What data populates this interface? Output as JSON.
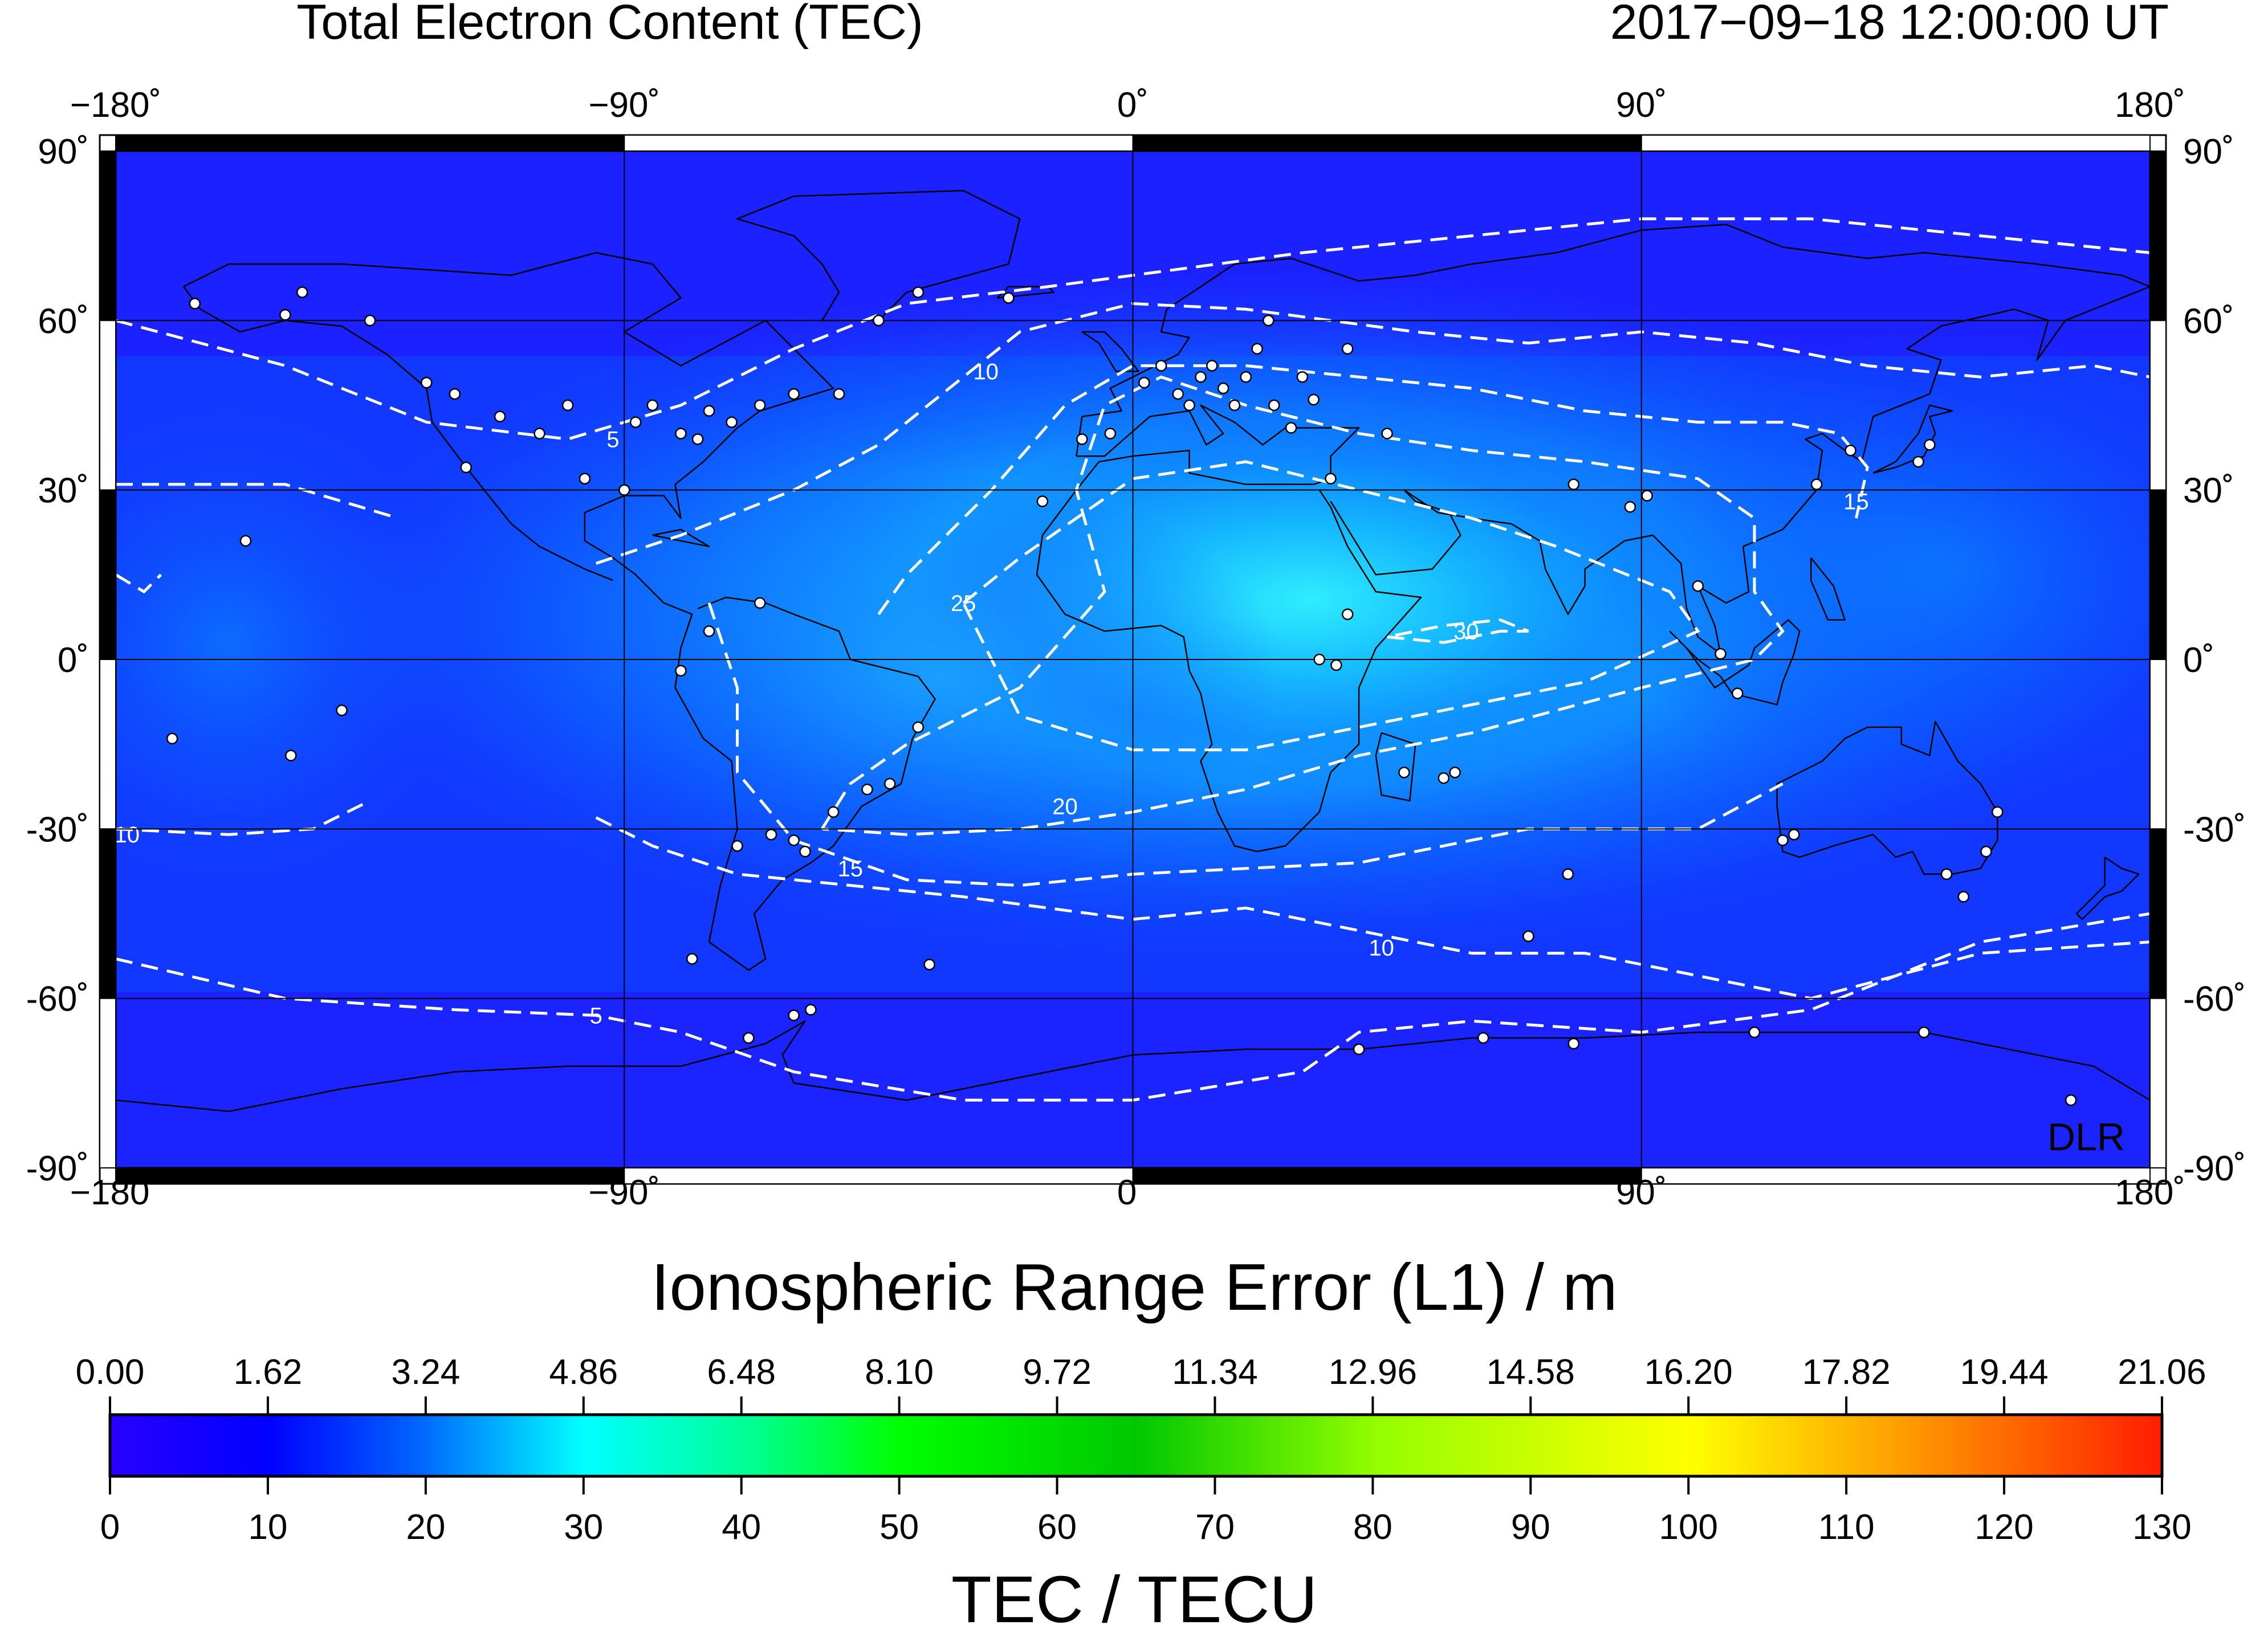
{
  "header": {
    "title": "Total Electron Content (TEC)",
    "timestamp": "2017−09−18  12:00:00 UT"
  },
  "map": {
    "lon_ticks": [
      {
        "value": -180,
        "label": "−180˚"
      },
      {
        "value": -90,
        "label": "−90˚"
      },
      {
        "value": 0,
        "label": "0˚"
      },
      {
        "value": 90,
        "label": "90˚"
      },
      {
        "value": 180,
        "label": "180˚"
      }
    ],
    "lat_ticks": [
      {
        "value": 90,
        "label": "90˚"
      },
      {
        "value": 60,
        "label": "60˚"
      },
      {
        "value": 30,
        "label": "30˚"
      },
      {
        "value": 0,
        "label": "0˚"
      },
      {
        "value": -30,
        "label": "-30˚"
      },
      {
        "value": -60,
        "label": "-60˚"
      },
      {
        "value": -90,
        "label": "-90˚"
      }
    ],
    "lon_range": [
      -180,
      180
    ],
    "lat_range": [
      -90,
      90
    ],
    "watermark": "DLR",
    "contour_labels": [
      "5",
      "10",
      "15",
      "20",
      "25",
      "30"
    ]
  },
  "chart_data": {
    "type": "heatmap",
    "title": "Total Electron Content (TEC)",
    "xlim": [
      -180,
      180
    ],
    "ylim": [
      -90,
      90
    ],
    "contour_levels": [
      5,
      10,
      15,
      20,
      25,
      30
    ],
    "max_region": {
      "lon": 25,
      "lat": 10,
      "value": 32
    },
    "stations_approx": [
      [
        -166,
        63
      ],
      [
        -150,
        61
      ],
      [
        -147,
        65
      ],
      [
        -135,
        60
      ],
      [
        -125,
        49
      ],
      [
        -120,
        47
      ],
      [
        -118,
        34
      ],
      [
        -112,
        43
      ],
      [
        -105,
        40
      ],
      [
        -100,
        45
      ],
      [
        -97,
        32
      ],
      [
        -90,
        30
      ],
      [
        -88,
        42
      ],
      [
        -85,
        45
      ],
      [
        -80,
        40
      ],
      [
        -77,
        39
      ],
      [
        -75,
        44
      ],
      [
        -71,
        42
      ],
      [
        -66,
        45
      ],
      [
        -60,
        47
      ],
      [
        -52,
        47
      ],
      [
        -45,
        60
      ],
      [
        -38,
        65
      ],
      [
        -22,
        64
      ],
      [
        -16,
        28
      ],
      [
        -9,
        39
      ],
      [
        -4,
        40
      ],
      [
        2,
        49
      ],
      [
        5,
        52
      ],
      [
        8,
        47
      ],
      [
        10,
        45
      ],
      [
        12,
        50
      ],
      [
        14,
        52
      ],
      [
        16,
        48
      ],
      [
        18,
        45
      ],
      [
        20,
        50
      ],
      [
        22,
        55
      ],
      [
        24,
        60
      ],
      [
        25,
        45
      ],
      [
        28,
        41
      ],
      [
        30,
        50
      ],
      [
        32,
        46
      ],
      [
        35,
        32
      ],
      [
        38,
        55
      ],
      [
        45,
        40
      ],
      [
        36,
        -1
      ],
      [
        38,
        8
      ],
      [
        33,
        0
      ],
      [
        48,
        -20
      ],
      [
        55,
        -21
      ],
      [
        57,
        -20
      ],
      [
        70,
        -49
      ],
      [
        77,
        -38
      ],
      [
        78,
        31
      ],
      [
        88,
        27
      ],
      [
        91,
        29
      ],
      [
        100,
        13
      ],
      [
        104,
        1
      ],
      [
        107,
        -6
      ],
      [
        115,
        -32
      ],
      [
        117,
        -31
      ],
      [
        121,
        31
      ],
      [
        127,
        37
      ],
      [
        139,
        35
      ],
      [
        141,
        38
      ],
      [
        144,
        -38
      ],
      [
        147,
        -42
      ],
      [
        151,
        -34
      ],
      [
        153,
        -27
      ],
      [
        -58,
        -34
      ],
      [
        -60,
        -32
      ],
      [
        -64,
        -31
      ],
      [
        -70,
        -33
      ],
      [
        -47,
        -23
      ],
      [
        -43,
        -22
      ],
      [
        -53,
        -27
      ],
      [
        -38,
        -12
      ],
      [
        -66,
        10
      ],
      [
        -75,
        5
      ],
      [
        -80,
        -2
      ],
      [
        -157,
        21
      ],
      [
        -149,
        -17
      ],
      [
        -140,
        -9
      ],
      [
        -170,
        -14
      ],
      [
        -60,
        -63
      ],
      [
        -57,
        -62
      ],
      [
        -68,
        -67
      ],
      [
        -78,
        -53
      ],
      [
        -36,
        -54
      ],
      [
        40,
        -69
      ],
      [
        62,
        -67
      ],
      [
        78,
        -68
      ],
      [
        110,
        -66
      ],
      [
        140,
        -66
      ],
      [
        166,
        -78
      ]
    ]
  },
  "colorbar": {
    "title_top": "Ionospheric Range Error (L1) / m",
    "title_bottom": "TEC / TECU",
    "top_labels": [
      "0.00",
      "1.62",
      "3.24",
      "4.86",
      "6.48",
      "8.10",
      "9.72",
      "11.34",
      "12.96",
      "14.58",
      "16.20",
      "17.82",
      "19.44",
      "21.06"
    ],
    "bottom_labels": [
      "0",
      "10",
      "20",
      "30",
      "40",
      "50",
      "60",
      "70",
      "80",
      "90",
      "100",
      "110",
      "120",
      "130"
    ],
    "tec_range": [
      0,
      130
    ],
    "range_error_range": [
      0,
      21.06
    ],
    "colors": [
      "#2800ff",
      "#0000ff",
      "#0096ff",
      "#00ffff",
      "#00ff96",
      "#00ff00",
      "#00c800",
      "#96ff00",
      "#ffff00",
      "#ff9600",
      "#ff0000"
    ]
  }
}
